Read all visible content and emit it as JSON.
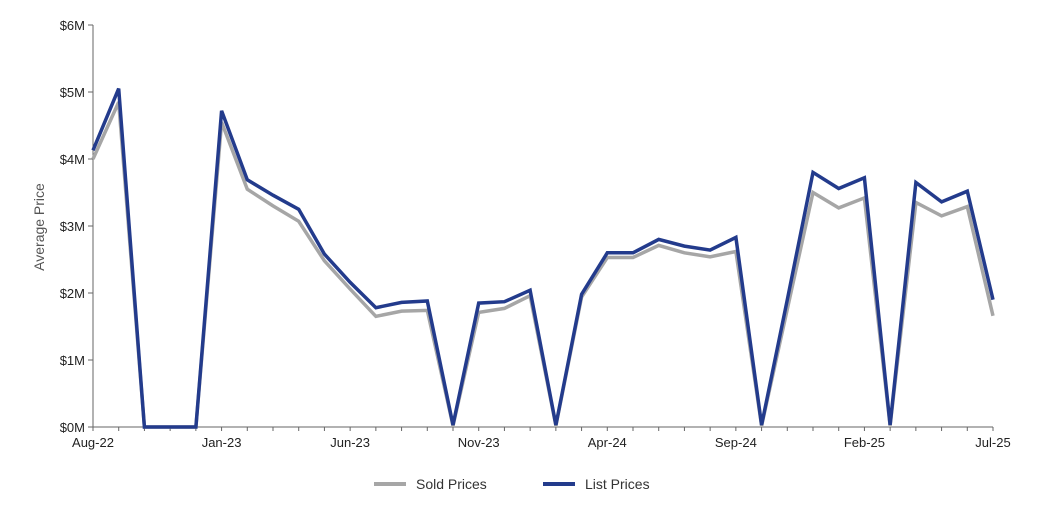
{
  "chart_data": {
    "type": "line",
    "ylabel": "Average Price",
    "xlabel": "",
    "ylim": [
      0,
      6000000
    ],
    "y_ticks": [
      {
        "value": 0,
        "label": "$0M"
      },
      {
        "value": 1000000,
        "label": "$1M"
      },
      {
        "value": 2000000,
        "label": "$2M"
      },
      {
        "value": 3000000,
        "label": "$3M"
      },
      {
        "value": 4000000,
        "label": "$4M"
      },
      {
        "value": 5000000,
        "label": "$5M"
      },
      {
        "value": 6000000,
        "label": "$6M"
      }
    ],
    "x": [
      "Aug-22",
      "Sep-22",
      "Oct-22",
      "Nov-22",
      "Dec-22",
      "Jan-23",
      "Feb-23",
      "Mar-23",
      "Apr-23",
      "May-23",
      "Jun-23",
      "Jul-23",
      "Aug-23",
      "Sep-23",
      "Oct-23",
      "Nov-23",
      "Dec-23",
      "Jan-24",
      "Feb-24",
      "Mar-24",
      "Apr-24",
      "May-24",
      "Jun-24",
      "Jul-24",
      "Aug-24",
      "Sep-24",
      "Oct-24",
      "Nov-24",
      "Dec-24",
      "Jan-25",
      "Feb-25",
      "Mar-25",
      "Apr-25",
      "May-25",
      "Jun-25",
      "Jul-25"
    ],
    "x_tick_labels": [
      {
        "index": 0,
        "label": "Aug-22"
      },
      {
        "index": 5,
        "label": "Jan-23"
      },
      {
        "index": 10,
        "label": "Jun-23"
      },
      {
        "index": 15,
        "label": "Nov-23"
      },
      {
        "index": 20,
        "label": "Apr-24"
      },
      {
        "index": 25,
        "label": "Sep-24"
      },
      {
        "index": 30,
        "label": "Feb-25"
      },
      {
        "index": 35,
        "label": "Jul-25"
      }
    ],
    "series": [
      {
        "name": "Sold Prices",
        "color": "#a6a6a6",
        "values": [
          4000000,
          4850000,
          0,
          0,
          0,
          4550000,
          3550000,
          3300000,
          3070000,
          2480000,
          2060000,
          1650000,
          1730000,
          1740000,
          20000,
          1710000,
          1770000,
          1960000,
          20000,
          1940000,
          2530000,
          2530000,
          2710000,
          2600000,
          2540000,
          2620000,
          20000,
          1760000,
          3500000,
          3270000,
          3420000,
          20000,
          3350000,
          3150000,
          3290000,
          1660000
        ]
      },
      {
        "name": "List Prices",
        "color": "#233b8c",
        "values": [
          4130000,
          5050000,
          0,
          0,
          0,
          4720000,
          3690000,
          3460000,
          3250000,
          2580000,
          2160000,
          1780000,
          1860000,
          1880000,
          30000,
          1850000,
          1870000,
          2040000,
          30000,
          1980000,
          2600000,
          2600000,
          2800000,
          2700000,
          2640000,
          2830000,
          30000,
          1900000,
          3800000,
          3560000,
          3720000,
          30000,
          3650000,
          3360000,
          3520000,
          1900000
        ]
      }
    ],
    "legend": {
      "position": "bottom"
    },
    "grid": false
  }
}
